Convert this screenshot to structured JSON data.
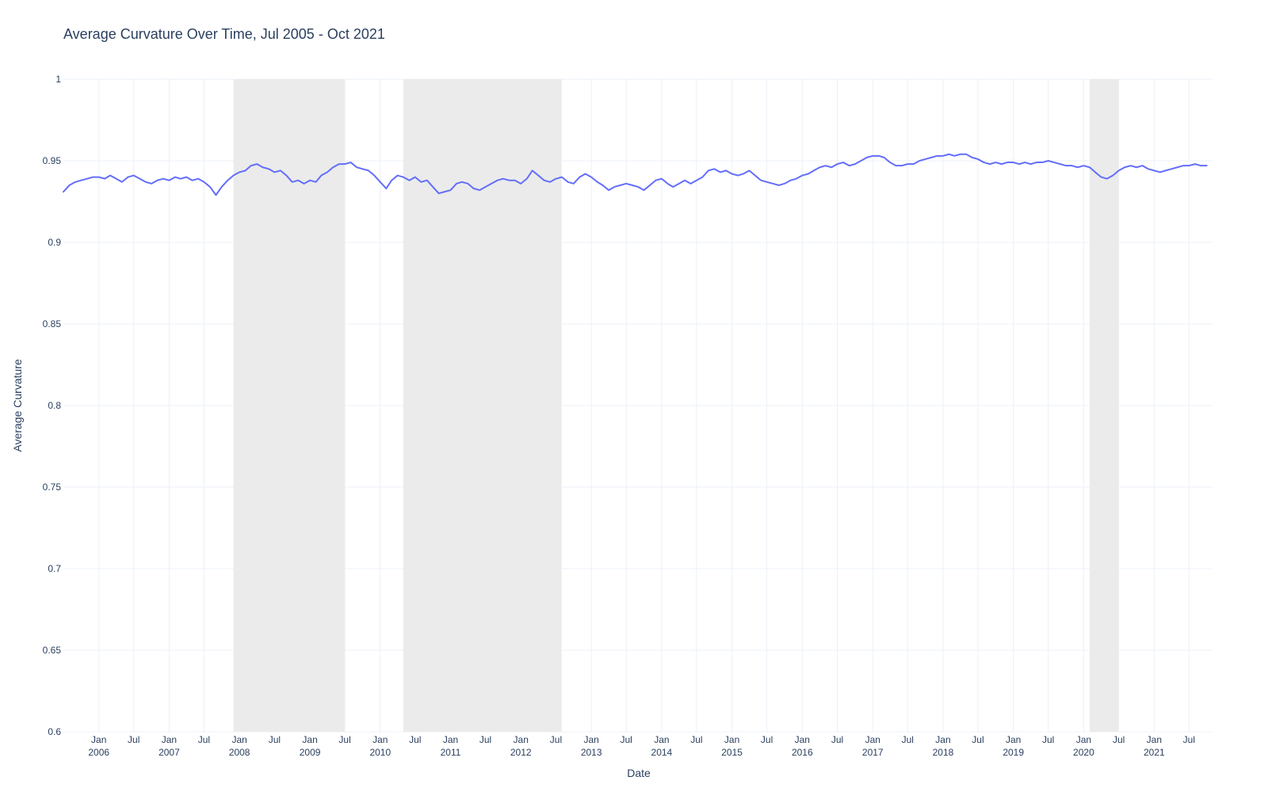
{
  "chart_data": {
    "type": "line",
    "title": "Average Curvature Over Time, Jul 2005 - Oct 2021",
    "xlabel": "Date",
    "ylabel": "Average Curvature",
    "xlim": [
      "2005-07-01",
      "2021-10-31"
    ],
    "ylim": [
      0.6,
      1.0
    ],
    "grid": true,
    "legend": "none",
    "y_ticks": [
      "0.6",
      "0.65",
      "0.7",
      "0.75",
      "0.8",
      "0.85",
      "0.9",
      "0.95",
      "1"
    ],
    "x_ticks": [
      {
        "date": "2006-01-01",
        "line1": "Jan",
        "line2": "2006"
      },
      {
        "date": "2006-07-01",
        "line1": "Jul",
        "line2": ""
      },
      {
        "date": "2007-01-01",
        "line1": "Jan",
        "line2": "2007"
      },
      {
        "date": "2007-07-01",
        "line1": "Jul",
        "line2": ""
      },
      {
        "date": "2008-01-01",
        "line1": "Jan",
        "line2": "2008"
      },
      {
        "date": "2008-07-01",
        "line1": "Jul",
        "line2": ""
      },
      {
        "date": "2009-01-01",
        "line1": "Jan",
        "line2": "2009"
      },
      {
        "date": "2009-07-01",
        "line1": "Jul",
        "line2": ""
      },
      {
        "date": "2010-01-01",
        "line1": "Jan",
        "line2": "2010"
      },
      {
        "date": "2010-07-01",
        "line1": "Jul",
        "line2": ""
      },
      {
        "date": "2011-01-01",
        "line1": "Jan",
        "line2": "2011"
      },
      {
        "date": "2011-07-01",
        "line1": "Jul",
        "line2": ""
      },
      {
        "date": "2012-01-01",
        "line1": "Jan",
        "line2": "2012"
      },
      {
        "date": "2012-07-01",
        "line1": "Jul",
        "line2": ""
      },
      {
        "date": "2013-01-01",
        "line1": "Jan",
        "line2": "2013"
      },
      {
        "date": "2013-07-01",
        "line1": "Jul",
        "line2": ""
      },
      {
        "date": "2014-01-01",
        "line1": "Jan",
        "line2": "2014"
      },
      {
        "date": "2014-07-01",
        "line1": "Jul",
        "line2": ""
      },
      {
        "date": "2015-01-01",
        "line1": "Jan",
        "line2": "2015"
      },
      {
        "date": "2015-07-01",
        "line1": "Jul",
        "line2": ""
      },
      {
        "date": "2016-01-01",
        "line1": "Jan",
        "line2": "2016"
      },
      {
        "date": "2016-07-01",
        "line1": "Jul",
        "line2": ""
      },
      {
        "date": "2017-01-01",
        "line1": "Jan",
        "line2": "2017"
      },
      {
        "date": "2017-07-01",
        "line1": "Jul",
        "line2": ""
      },
      {
        "date": "2018-01-01",
        "line1": "Jan",
        "line2": "2018"
      },
      {
        "date": "2018-07-01",
        "line1": "Jul",
        "line2": ""
      },
      {
        "date": "2019-01-01",
        "line1": "Jan",
        "line2": "2019"
      },
      {
        "date": "2019-07-01",
        "line1": "Jul",
        "line2": ""
      },
      {
        "date": "2020-01-01",
        "line1": "Jan",
        "line2": "2020"
      },
      {
        "date": "2020-07-01",
        "line1": "Jul",
        "line2": ""
      },
      {
        "date": "2021-01-01",
        "line1": "Jan",
        "line2": "2021"
      },
      {
        "date": "2021-07-01",
        "line1": "Jul",
        "line2": ""
      }
    ],
    "shaded_periods": [
      {
        "start": "2007-12-01",
        "end": "2009-06-30"
      },
      {
        "start": "2010-05-01",
        "end": "2012-07-31"
      },
      {
        "start": "2020-02-01",
        "end": "2020-06-30"
      }
    ],
    "series": [
      {
        "color": "#636efa",
        "points": [
          [
            "2005-07-01",
            0.931
          ],
          [
            "2005-08-01",
            0.935
          ],
          [
            "2005-09-01",
            0.937
          ],
          [
            "2005-10-01",
            0.938
          ],
          [
            "2005-11-01",
            0.939
          ],
          [
            "2005-12-01",
            0.94
          ],
          [
            "2006-01-01",
            0.94
          ],
          [
            "2006-02-01",
            0.939
          ],
          [
            "2006-03-01",
            0.941
          ],
          [
            "2006-04-01",
            0.939
          ],
          [
            "2006-05-01",
            0.937
          ],
          [
            "2006-06-01",
            0.94
          ],
          [
            "2006-07-01",
            0.941
          ],
          [
            "2006-08-01",
            0.939
          ],
          [
            "2006-09-01",
            0.937
          ],
          [
            "2006-10-01",
            0.936
          ],
          [
            "2006-11-01",
            0.938
          ],
          [
            "2006-12-01",
            0.939
          ],
          [
            "2007-01-01",
            0.938
          ],
          [
            "2007-02-01",
            0.94
          ],
          [
            "2007-03-01",
            0.939
          ],
          [
            "2007-04-01",
            0.94
          ],
          [
            "2007-05-01",
            0.938
          ],
          [
            "2007-06-01",
            0.939
          ],
          [
            "2007-07-01",
            0.937
          ],
          [
            "2007-08-01",
            0.934
          ],
          [
            "2007-09-01",
            0.929
          ],
          [
            "2007-10-01",
            0.934
          ],
          [
            "2007-11-01",
            0.938
          ],
          [
            "2007-12-01",
            0.941
          ],
          [
            "2008-01-01",
            0.943
          ],
          [
            "2008-02-01",
            0.944
          ],
          [
            "2008-03-01",
            0.947
          ],
          [
            "2008-04-01",
            0.948
          ],
          [
            "2008-05-01",
            0.946
          ],
          [
            "2008-06-01",
            0.945
          ],
          [
            "2008-07-01",
            0.943
          ],
          [
            "2008-08-01",
            0.944
          ],
          [
            "2008-09-01",
            0.941
          ],
          [
            "2008-10-01",
            0.937
          ],
          [
            "2008-11-01",
            0.938
          ],
          [
            "2008-12-01",
            0.936
          ],
          [
            "2009-01-01",
            0.938
          ],
          [
            "2009-02-01",
            0.937
          ],
          [
            "2009-03-01",
            0.941
          ],
          [
            "2009-04-01",
            0.943
          ],
          [
            "2009-05-01",
            0.946
          ],
          [
            "2009-06-01",
            0.948
          ],
          [
            "2009-07-01",
            0.948
          ],
          [
            "2009-08-01",
            0.949
          ],
          [
            "2009-09-01",
            0.946
          ],
          [
            "2009-10-01",
            0.945
          ],
          [
            "2009-11-01",
            0.944
          ],
          [
            "2009-12-01",
            0.941
          ],
          [
            "2010-01-01",
            0.937
          ],
          [
            "2010-02-01",
            0.933
          ],
          [
            "2010-03-01",
            0.938
          ],
          [
            "2010-04-01",
            0.941
          ],
          [
            "2010-05-01",
            0.94
          ],
          [
            "2010-06-01",
            0.938
          ],
          [
            "2010-07-01",
            0.94
          ],
          [
            "2010-08-01",
            0.937
          ],
          [
            "2010-09-01",
            0.938
          ],
          [
            "2010-10-01",
            0.934
          ],
          [
            "2010-11-01",
            0.93
          ],
          [
            "2010-12-01",
            0.931
          ],
          [
            "2011-01-01",
            0.932
          ],
          [
            "2011-02-01",
            0.936
          ],
          [
            "2011-03-01",
            0.937
          ],
          [
            "2011-04-01",
            0.936
          ],
          [
            "2011-05-01",
            0.933
          ],
          [
            "2011-06-01",
            0.932
          ],
          [
            "2011-07-01",
            0.934
          ],
          [
            "2011-08-01",
            0.936
          ],
          [
            "2011-09-01",
            0.938
          ],
          [
            "2011-10-01",
            0.939
          ],
          [
            "2011-11-01",
            0.938
          ],
          [
            "2011-12-01",
            0.938
          ],
          [
            "2012-01-01",
            0.936
          ],
          [
            "2012-02-01",
            0.939
          ],
          [
            "2012-03-01",
            0.944
          ],
          [
            "2012-04-01",
            0.941
          ],
          [
            "2012-05-01",
            0.938
          ],
          [
            "2012-06-01",
            0.937
          ],
          [
            "2012-07-01",
            0.939
          ],
          [
            "2012-08-01",
            0.94
          ],
          [
            "2012-09-01",
            0.937
          ],
          [
            "2012-10-01",
            0.936
          ],
          [
            "2012-11-01",
            0.94
          ],
          [
            "2012-12-01",
            0.942
          ],
          [
            "2013-01-01",
            0.94
          ],
          [
            "2013-02-01",
            0.937
          ],
          [
            "2013-03-01",
            0.935
          ],
          [
            "2013-04-01",
            0.932
          ],
          [
            "2013-05-01",
            0.934
          ],
          [
            "2013-06-01",
            0.935
          ],
          [
            "2013-07-01",
            0.936
          ],
          [
            "2013-08-01",
            0.935
          ],
          [
            "2013-09-01",
            0.934
          ],
          [
            "2013-10-01",
            0.932
          ],
          [
            "2013-11-01",
            0.935
          ],
          [
            "2013-12-01",
            0.938
          ],
          [
            "2014-01-01",
            0.939
          ],
          [
            "2014-02-01",
            0.936
          ],
          [
            "2014-03-01",
            0.934
          ],
          [
            "2014-04-01",
            0.936
          ],
          [
            "2014-05-01",
            0.938
          ],
          [
            "2014-06-01",
            0.936
          ],
          [
            "2014-07-01",
            0.938
          ],
          [
            "2014-08-01",
            0.94
          ],
          [
            "2014-09-01",
            0.944
          ],
          [
            "2014-10-01",
            0.945
          ],
          [
            "2014-11-01",
            0.943
          ],
          [
            "2014-12-01",
            0.944
          ],
          [
            "2015-01-01",
            0.942
          ],
          [
            "2015-02-01",
            0.941
          ],
          [
            "2015-03-01",
            0.942
          ],
          [
            "2015-04-01",
            0.944
          ],
          [
            "2015-05-01",
            0.941
          ],
          [
            "2015-06-01",
            0.938
          ],
          [
            "2015-07-01",
            0.937
          ],
          [
            "2015-08-01",
            0.936
          ],
          [
            "2015-09-01",
            0.935
          ],
          [
            "2015-10-01",
            0.936
          ],
          [
            "2015-11-01",
            0.938
          ],
          [
            "2015-12-01",
            0.939
          ],
          [
            "2016-01-01",
            0.941
          ],
          [
            "2016-02-01",
            0.942
          ],
          [
            "2016-03-01",
            0.944
          ],
          [
            "2016-04-01",
            0.946
          ],
          [
            "2016-05-01",
            0.947
          ],
          [
            "2016-06-01",
            0.946
          ],
          [
            "2016-07-01",
            0.948
          ],
          [
            "2016-08-01",
            0.949
          ],
          [
            "2016-09-01",
            0.947
          ],
          [
            "2016-10-01",
            0.948
          ],
          [
            "2016-11-01",
            0.95
          ],
          [
            "2016-12-01",
            0.952
          ],
          [
            "2017-01-01",
            0.953
          ],
          [
            "2017-02-01",
            0.953
          ],
          [
            "2017-03-01",
            0.952
          ],
          [
            "2017-04-01",
            0.949
          ],
          [
            "2017-05-01",
            0.947
          ],
          [
            "2017-06-01",
            0.947
          ],
          [
            "2017-07-01",
            0.948
          ],
          [
            "2017-08-01",
            0.948
          ],
          [
            "2017-09-01",
            0.95
          ],
          [
            "2017-10-01",
            0.951
          ],
          [
            "2017-11-01",
            0.952
          ],
          [
            "2017-12-01",
            0.953
          ],
          [
            "2018-01-01",
            0.953
          ],
          [
            "2018-02-01",
            0.954
          ],
          [
            "2018-03-01",
            0.953
          ],
          [
            "2018-04-01",
            0.954
          ],
          [
            "2018-05-01",
            0.954
          ],
          [
            "2018-06-01",
            0.952
          ],
          [
            "2018-07-01",
            0.951
          ],
          [
            "2018-08-01",
            0.949
          ],
          [
            "2018-09-01",
            0.948
          ],
          [
            "2018-10-01",
            0.949
          ],
          [
            "2018-11-01",
            0.948
          ],
          [
            "2018-12-01",
            0.949
          ],
          [
            "2019-01-01",
            0.949
          ],
          [
            "2019-02-01",
            0.948
          ],
          [
            "2019-03-01",
            0.949
          ],
          [
            "2019-04-01",
            0.948
          ],
          [
            "2019-05-01",
            0.949
          ],
          [
            "2019-06-01",
            0.949
          ],
          [
            "2019-07-01",
            0.95
          ],
          [
            "2019-08-01",
            0.949
          ],
          [
            "2019-09-01",
            0.948
          ],
          [
            "2019-10-01",
            0.947
          ],
          [
            "2019-11-01",
            0.947
          ],
          [
            "2019-12-01",
            0.946
          ],
          [
            "2020-01-01",
            0.947
          ],
          [
            "2020-02-01",
            0.946
          ],
          [
            "2020-03-01",
            0.943
          ],
          [
            "2020-04-01",
            0.94
          ],
          [
            "2020-05-01",
            0.939
          ],
          [
            "2020-06-01",
            0.941
          ],
          [
            "2020-07-01",
            0.944
          ],
          [
            "2020-08-01",
            0.946
          ],
          [
            "2020-09-01",
            0.947
          ],
          [
            "2020-10-01",
            0.946
          ],
          [
            "2020-11-01",
            0.947
          ],
          [
            "2020-12-01",
            0.945
          ],
          [
            "2021-01-01",
            0.944
          ],
          [
            "2021-02-01",
            0.943
          ],
          [
            "2021-03-01",
            0.944
          ],
          [
            "2021-04-01",
            0.945
          ],
          [
            "2021-05-01",
            0.946
          ],
          [
            "2021-06-01",
            0.947
          ],
          [
            "2021-07-01",
            0.947
          ],
          [
            "2021-08-01",
            0.948
          ],
          [
            "2021-09-01",
            0.947
          ],
          [
            "2021-10-01",
            0.947
          ]
        ]
      }
    ]
  }
}
